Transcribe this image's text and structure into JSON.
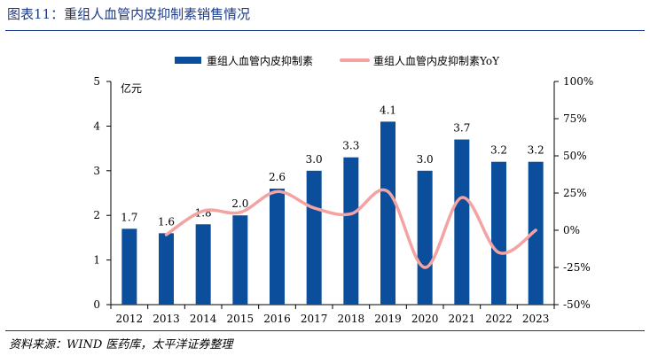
{
  "figure": {
    "title": "图表11：重组人血管内皮抑制素销售情况",
    "source": "资料来源：WIND 医药库，太平洋证券整理"
  },
  "chart_data": {
    "type": "bar",
    "categories": [
      "2012",
      "2013",
      "2014",
      "2015",
      "2016",
      "2017",
      "2018",
      "2019",
      "2020",
      "2021",
      "2022",
      "2023"
    ],
    "series": [
      {
        "name": "重组人血管内皮抑制素",
        "type": "bar",
        "axis": "left",
        "color": "#0b4f9c",
        "values": [
          1.7,
          1.6,
          1.8,
          2.0,
          2.6,
          3.0,
          3.3,
          4.1,
          3.0,
          3.7,
          3.2,
          3.2
        ],
        "labels": [
          "1.7",
          "1.6",
          "1.8",
          "2.0",
          "2.6",
          "3.0",
          "3.3",
          "4.1",
          "3.0",
          "3.7",
          "3.2",
          "3.2"
        ]
      },
      {
        "name": "重组人血管内皮抑制素YoY",
        "type": "line",
        "axis": "right",
        "color": "#f4a3a3",
        "values": [
          null,
          -3,
          13,
          12,
          26,
          15,
          11,
          26,
          -25,
          22,
          -15,
          0
        ]
      }
    ],
    "y_left": {
      "unit_label": "亿元",
      "min": 0,
      "max": 5,
      "ticks": [
        "0",
        "1",
        "2",
        "3",
        "4",
        "5"
      ]
    },
    "y_right": {
      "min": -50,
      "max": 100,
      "ticks": [
        "-50%",
        "-25%",
        "0%",
        "25%",
        "50%",
        "75%",
        "100%"
      ]
    },
    "legend_position": "top",
    "grid": false
  }
}
